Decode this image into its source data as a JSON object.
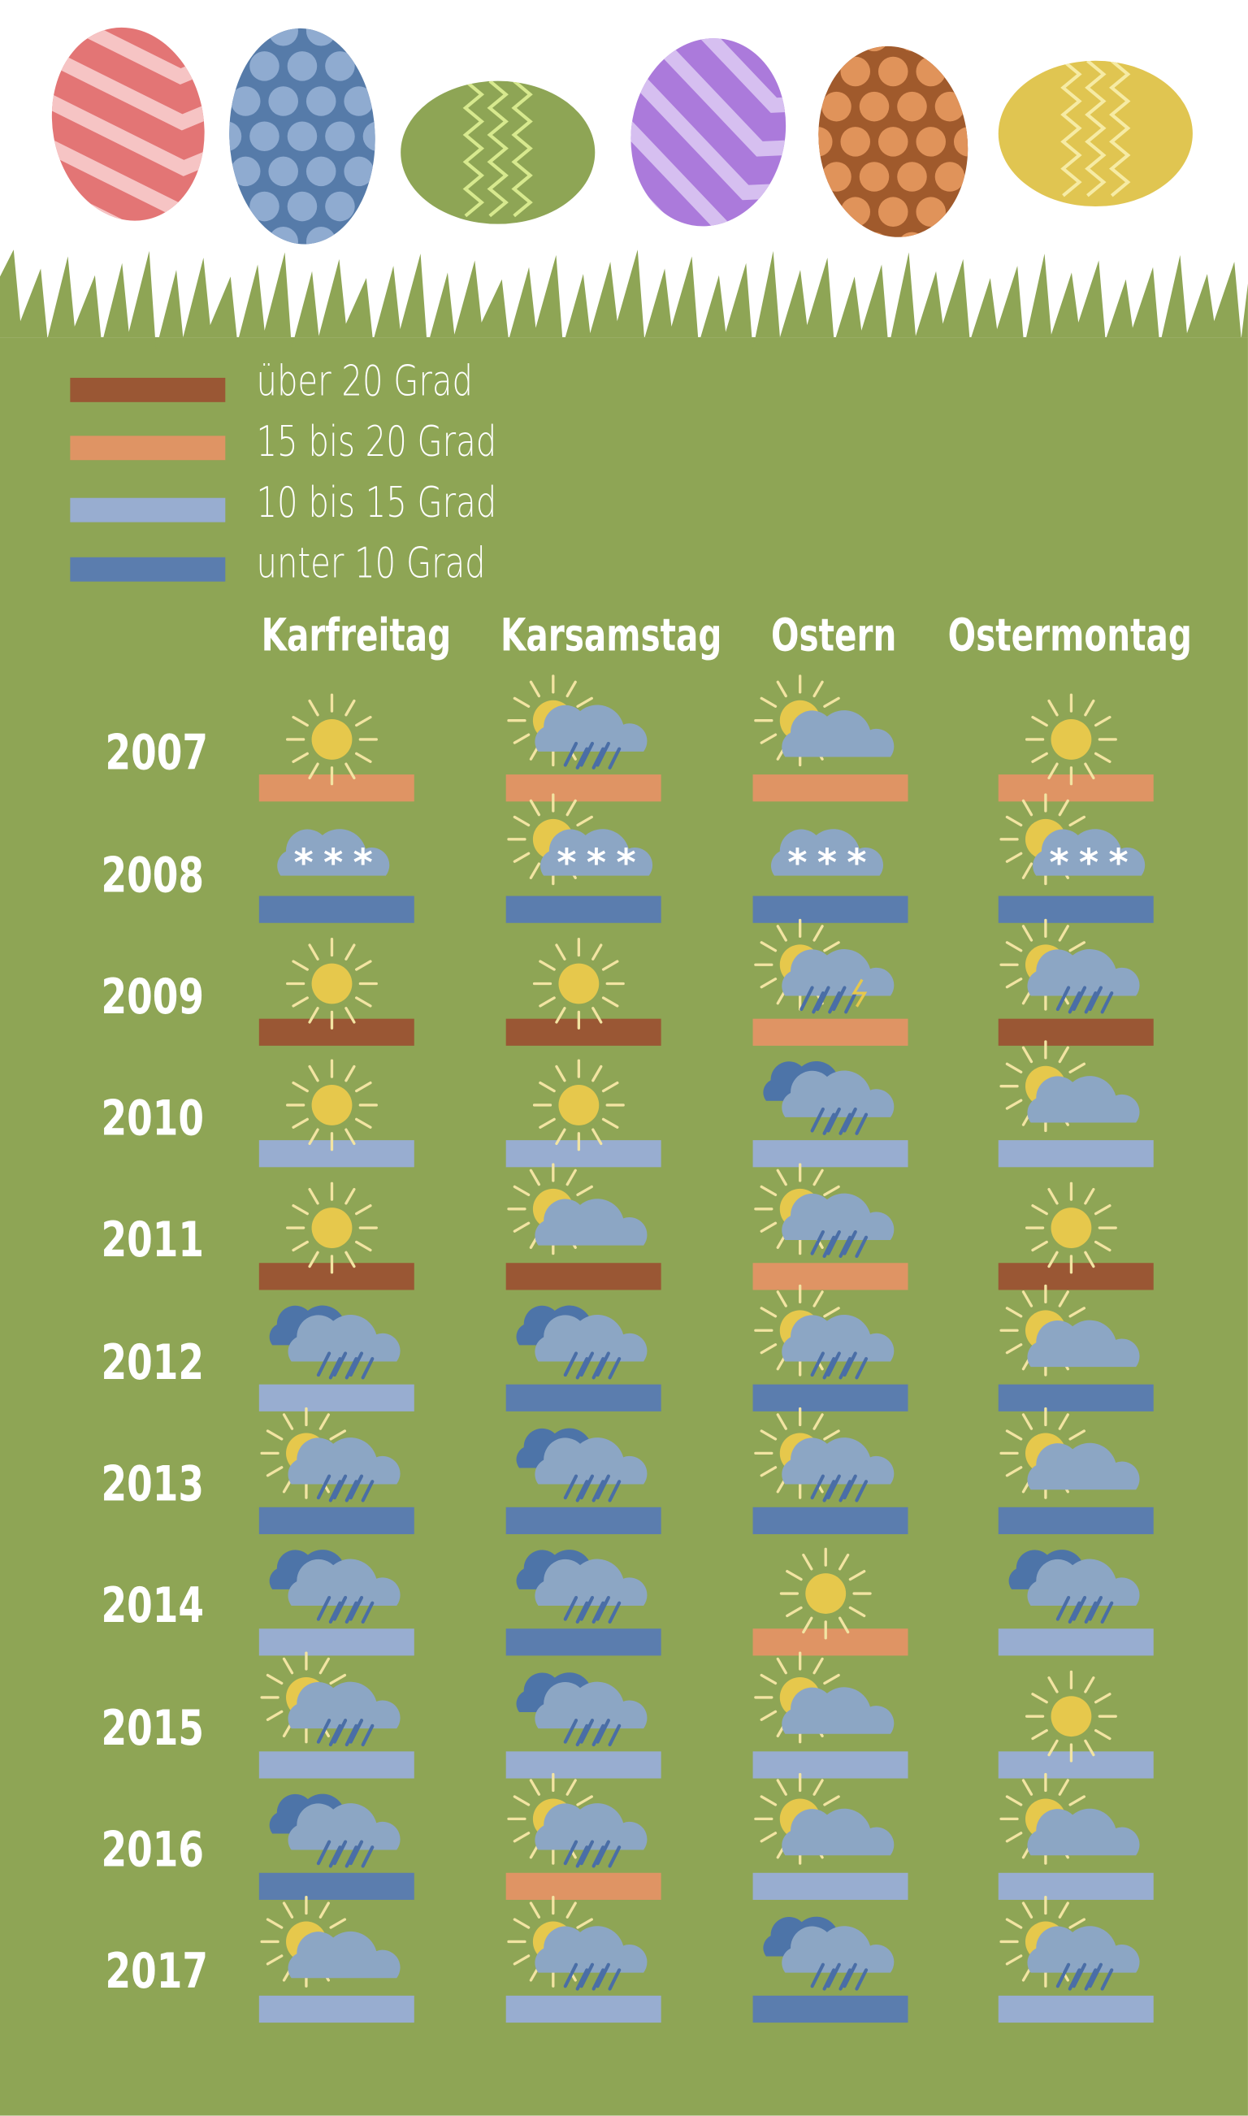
{
  "legend": [
    {
      "label": "über 20 Grad",
      "color": "#9a5734"
    },
    {
      "label": "15 bis 20 Grad",
      "color": "#df9464"
    },
    {
      "label": "10 bis 15 Grad",
      "color": "#98add0"
    },
    {
      "label": "unter 10 Grad",
      "color": "#5b7dae"
    }
  ],
  "days": [
    "Karfreitag",
    "Karsamstag",
    "Ostern",
    "Ostermontag"
  ],
  "eggs": [
    {
      "color": "#e37575",
      "pattern": "chevron-icon"
    },
    {
      "color": "#567ba9",
      "pattern": "dots-icon"
    },
    {
      "color": "#8ea555",
      "pattern": "zigzag-icon"
    },
    {
      "color": "#ab7adb",
      "pattern": "chevron-icon"
    },
    {
      "color": "#a05a2c",
      "pattern": "dots-icon"
    },
    {
      "color": "#e0c551",
      "pattern": "zigzag-icon"
    }
  ],
  "weather_table": [
    {
      "year": "2007",
      "days": [
        {
          "icon": "sun-icon",
          "temp": "15 bis 20 Grad"
        },
        {
          "icon": "sun-cloud-rain-icon",
          "temp": "15 bis 20 Grad"
        },
        {
          "icon": "sun-cloud-icon",
          "temp": "15 bis 20 Grad"
        },
        {
          "icon": "sun-icon",
          "temp": "15 bis 20 Grad"
        }
      ]
    },
    {
      "year": "2008",
      "days": [
        {
          "icon": "cloud-snow-icon",
          "temp": "unter 10 Grad"
        },
        {
          "icon": "sun-cloud-snow-icon",
          "temp": "unter 10 Grad"
        },
        {
          "icon": "cloud-snow-icon",
          "temp": "unter 10 Grad"
        },
        {
          "icon": "sun-cloud-snow-icon",
          "temp": "unter 10 Grad"
        }
      ]
    },
    {
      "year": "2009",
      "days": [
        {
          "icon": "sun-icon",
          "temp": "über 20 Grad"
        },
        {
          "icon": "sun-icon",
          "temp": "über 20 Grad"
        },
        {
          "icon": "sun-cloud-storm-icon",
          "temp": "15 bis 20 Grad"
        },
        {
          "icon": "sun-cloud-rain-icon",
          "temp": "über 20 Grad"
        }
      ]
    },
    {
      "year": "2010",
      "days": [
        {
          "icon": "sun-icon",
          "temp": "10 bis 15 Grad"
        },
        {
          "icon": "sun-icon",
          "temp": "10 bis 15 Grad"
        },
        {
          "icon": "cloud-rain-icon",
          "temp": "10 bis 15 Grad"
        },
        {
          "icon": "sun-cloud-icon",
          "temp": "10 bis 15 Grad"
        }
      ]
    },
    {
      "year": "2011",
      "days": [
        {
          "icon": "sun-icon",
          "temp": "über 20 Grad"
        },
        {
          "icon": "sun-cloud-icon",
          "temp": "über 20 Grad"
        },
        {
          "icon": "sun-cloud-rain-icon",
          "temp": "15 bis 20 Grad"
        },
        {
          "icon": "sun-icon",
          "temp": "über 20 Grad"
        }
      ]
    },
    {
      "year": "2012",
      "days": [
        {
          "icon": "cloud-rain-icon",
          "temp": "10 bis 15 Grad"
        },
        {
          "icon": "cloud-rain-icon",
          "temp": "unter 10 Grad"
        },
        {
          "icon": "sun-cloud-rain-icon",
          "temp": "unter 10 Grad"
        },
        {
          "icon": "sun-cloud-icon",
          "temp": "unter 10 Grad"
        }
      ]
    },
    {
      "year": "2013",
      "days": [
        {
          "icon": "sun-cloud-rain-icon",
          "temp": "unter 10 Grad"
        },
        {
          "icon": "cloud-rain-icon",
          "temp": "unter 10 Grad"
        },
        {
          "icon": "sun-cloud-rain-icon",
          "temp": "unter 10 Grad"
        },
        {
          "icon": "sun-cloud-icon",
          "temp": "unter 10 Grad"
        }
      ]
    },
    {
      "year": "2014",
      "days": [
        {
          "icon": "cloud-rain-icon",
          "temp": "10 bis 15 Grad"
        },
        {
          "icon": "cloud-rain-icon",
          "temp": "unter 10 Grad"
        },
        {
          "icon": "sun-icon",
          "temp": "15 bis 20 Grad"
        },
        {
          "icon": "cloud-rain-icon",
          "temp": "10 bis 15 Grad"
        }
      ]
    },
    {
      "year": "2015",
      "days": [
        {
          "icon": "sun-cloud-rain-icon",
          "temp": "10 bis 15 Grad"
        },
        {
          "icon": "cloud-rain-icon",
          "temp": "10 bis 15 Grad"
        },
        {
          "icon": "sun-cloud-icon",
          "temp": "10 bis 15 Grad"
        },
        {
          "icon": "sun-icon",
          "temp": "10 bis 15 Grad"
        }
      ]
    },
    {
      "year": "2016",
      "days": [
        {
          "icon": "cloud-rain-icon",
          "temp": "unter 10 Grad"
        },
        {
          "icon": "sun-cloud-rain-icon",
          "temp": "15 bis 20 Grad"
        },
        {
          "icon": "sun-cloud-icon",
          "temp": "10 bis 15 Grad"
        },
        {
          "icon": "sun-cloud-icon",
          "temp": "10 bis 15 Grad"
        }
      ]
    },
    {
      "year": "2017",
      "days": [
        {
          "icon": "sun-cloud-icon",
          "temp": "10 bis 15 Grad"
        },
        {
          "icon": "sun-cloud-rain-icon",
          "temp": "10 bis 15 Grad"
        },
        {
          "icon": "cloud-rain-icon",
          "temp": "unter 10 Grad"
        },
        {
          "icon": "sun-cloud-rain-icon",
          "temp": "10 bis 15 Grad"
        }
      ]
    }
  ],
  "colors": {
    "grass": "#8ea555",
    "sun": "#e6c84c",
    "sun_rays": "#f2e4a2",
    "cloud_light": "#8ca6c4",
    "cloud_dark": "#4d74a8",
    "rain": "#4a6ea6",
    "snow": "#ffffff",
    "lightning": "#e6c84c"
  }
}
